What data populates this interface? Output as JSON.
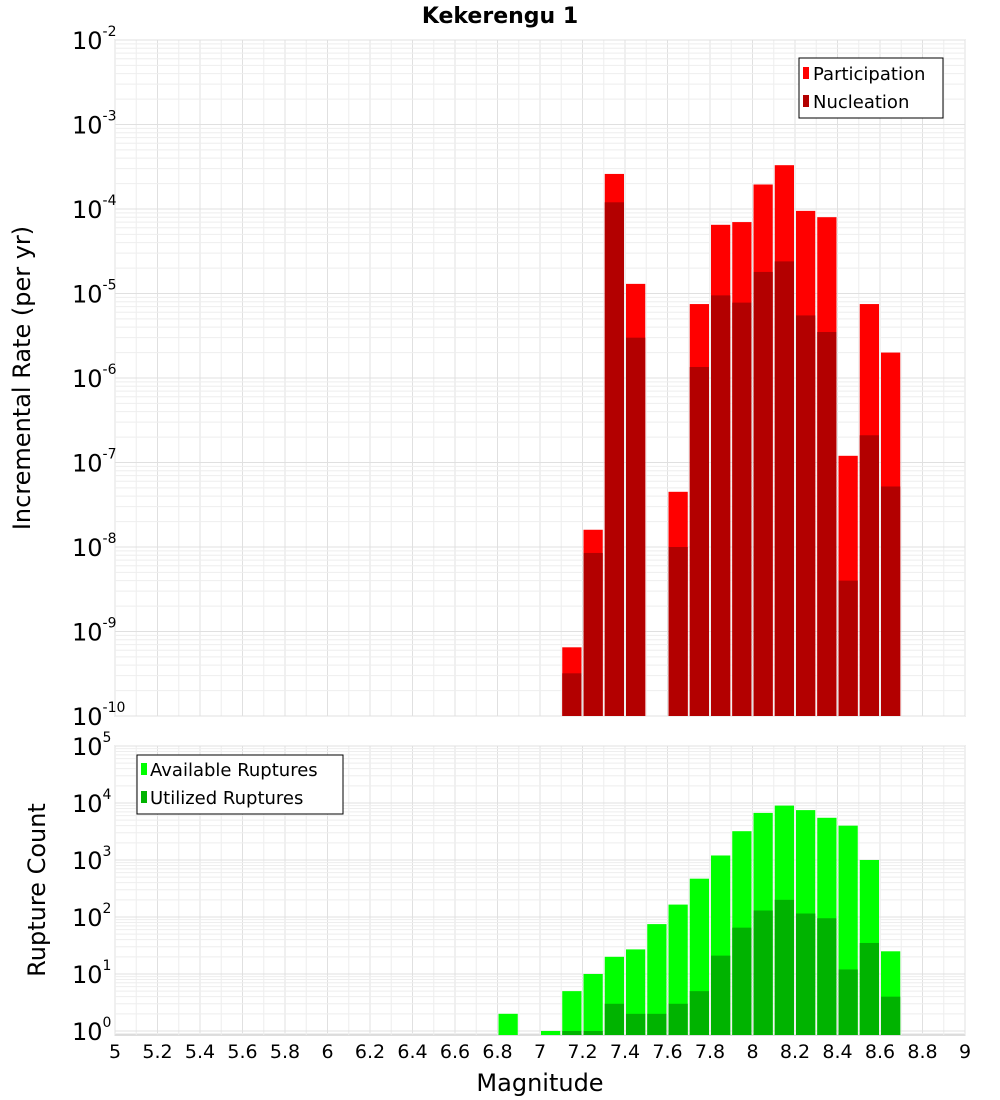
{
  "chart_data": [
    {
      "type": "bar",
      "title": "Kekerengu 1",
      "ylabel": "Incremental Rate (per yr)",
      "xlabel": "",
      "y_scale": "log",
      "ylim": [
        1e-10,
        0.01
      ],
      "xlim": [
        5,
        9
      ],
      "grid": true,
      "legend_position": "top-right",
      "series": [
        {
          "name": "Participation",
          "color": "#ff0000",
          "x": [
            7.15,
            7.25,
            7.35,
            7.45,
            7.65,
            7.75,
            7.85,
            7.95,
            8.05,
            8.15,
            8.25,
            8.35,
            8.45,
            8.55,
            8.65
          ],
          "values": [
            6.5e-10,
            1.6e-08,
            0.00026,
            1.3e-05,
            4.5e-08,
            7.5e-06,
            6.5e-05,
            7e-05,
            0.000195,
            0.00033,
            9.5e-05,
            8e-05,
            1.2e-07,
            7.5e-06,
            2e-06
          ]
        },
        {
          "name": "Nucleation",
          "color": "#b30000",
          "x": [
            7.15,
            7.25,
            7.35,
            7.45,
            7.65,
            7.75,
            7.85,
            7.95,
            8.05,
            8.15,
            8.25,
            8.35,
            8.45,
            8.55,
            8.65
          ],
          "values": [
            3.2e-10,
            8.5e-09,
            0.00012,
            3e-06,
            1e-08,
            1.35e-06,
            9.5e-06,
            7.8e-06,
            1.8e-05,
            2.4e-05,
            5.5e-06,
            3.5e-06,
            4e-09,
            2.1e-07,
            5.2e-08
          ]
        }
      ]
    },
    {
      "type": "bar",
      "title": "",
      "ylabel": "Rupture Count",
      "xlabel": "Magnitude",
      "y_scale": "log",
      "ylim": [
        0.85,
        100000
      ],
      "xlim": [
        5,
        9
      ],
      "grid": true,
      "legend_position": "top-left",
      "x_ticks": [
        "5",
        "5.2",
        "5.4",
        "5.6",
        "5.8",
        "6",
        "6.2",
        "6.4",
        "6.6",
        "6.8",
        "7",
        "7.2",
        "7.4",
        "7.6",
        "7.8",
        "8",
        "8.2",
        "8.4",
        "8.6",
        "8.8",
        "9"
      ],
      "series": [
        {
          "name": "Available Ruptures",
          "color": "#00ff00",
          "x": [
            6.85,
            7.05,
            7.15,
            7.25,
            7.35,
            7.45,
            7.55,
            7.65,
            7.75,
            7.85,
            7.95,
            8.05,
            8.15,
            8.25,
            8.35,
            8.45,
            8.55,
            8.65
          ],
          "values": [
            2,
            1,
            5,
            10,
            20,
            27,
            75,
            165,
            470,
            1200,
            3200,
            6700,
            9000,
            7500,
            5500,
            4000,
            1000,
            25
          ]
        },
        {
          "name": "Utilized Ruptures",
          "color": "#00b300",
          "x": [
            7.15,
            7.25,
            7.35,
            7.45,
            7.55,
            7.65,
            7.75,
            7.85,
            7.95,
            8.05,
            8.15,
            8.25,
            8.35,
            8.45,
            8.55,
            8.65
          ],
          "values": [
            1,
            1,
            3,
            2,
            2,
            3,
            5,
            21,
            65,
            130,
            200,
            115,
            95,
            12,
            35,
            4
          ]
        }
      ]
    }
  ]
}
